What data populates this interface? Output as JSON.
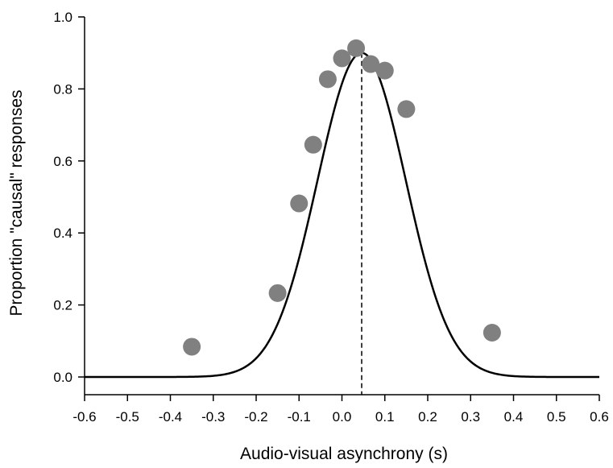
{
  "chart_data": {
    "type": "scatter",
    "title": "",
    "xlabel": "Audio-visual asynchrony (s)",
    "ylabel": "Proportion \"causal\" responses",
    "xlim": [
      -0.6,
      0.6
    ],
    "ylim": [
      0.0,
      1.0
    ],
    "x_ticks": [
      -0.6,
      -0.5,
      -0.4,
      -0.3,
      -0.2,
      -0.1,
      0.0,
      0.1,
      0.2,
      0.3,
      0.4,
      0.5,
      0.6
    ],
    "x_tick_labels": [
      "-0.6",
      "-0.5",
      "-0.4",
      "-0.3",
      "-0.2",
      "-0.1",
      "0.0",
      "0.1",
      "0.2",
      "0.3",
      "0.4",
      "0.5",
      "0.6"
    ],
    "y_ticks": [
      0.0,
      0.2,
      0.4,
      0.6,
      0.8,
      1.0
    ],
    "y_tick_labels": [
      "0.0",
      "0.2",
      "0.4",
      "0.6",
      "0.8",
      "1.0"
    ],
    "grid": false,
    "series": [
      {
        "type": "scatter",
        "x": [
          -0.35,
          -0.15,
          -0.1,
          -0.067,
          -0.033,
          0.0,
          0.033,
          0.067,
          0.1,
          0.15,
          0.35
        ],
        "y": [
          0.084,
          0.233,
          0.482,
          0.645,
          0.827,
          0.885,
          0.913,
          0.869,
          0.851,
          0.744,
          0.123
        ],
        "color": "#808080"
      },
      {
        "type": "line",
        "model": "gaussian",
        "amplitude": 0.9,
        "mean": 0.046,
        "sd": 0.103,
        "color": "#000000"
      }
    ],
    "reference_line": {
      "x": 0.046,
      "style": "dashed",
      "color": "#000000"
    }
  }
}
